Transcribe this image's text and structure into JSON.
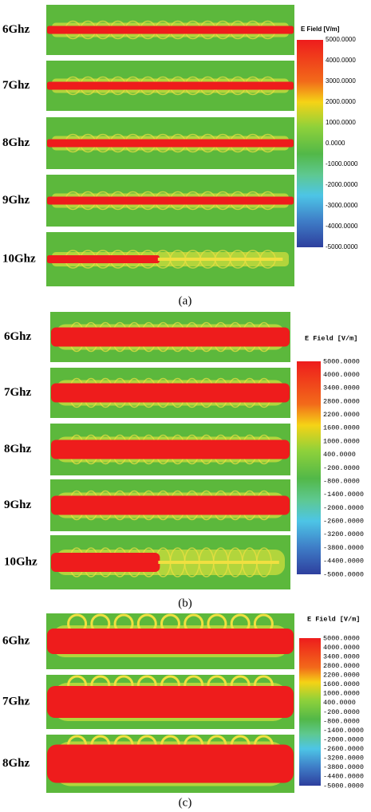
{
  "panels": [
    {
      "label": "(a)",
      "colorbar_title": "E Field [V/m]",
      "colorbar_ticks": [
        "5000.0000",
        "4000.0000",
        "3000.0000",
        "2000.0000",
        "1000.0000",
        "0.0000",
        "-1000.0000",
        "-2000.0000",
        "-3000.0000",
        "-4000.0000",
        "-5000.0000"
      ],
      "rows": [
        "6Ghz",
        "7Ghz",
        "8Ghz",
        "9Ghz",
        "10Ghz"
      ]
    },
    {
      "label": "(b)",
      "colorbar_title": "E Field [V/m]",
      "colorbar_ticks": [
        "5000.0000",
        "4000.0000",
        "3400.0000",
        "2800.0000",
        "2200.0000",
        "1600.0000",
        "1000.0000",
        "400.0000",
        "-200.0000",
        "-800.0000",
        "-1400.0000",
        "-2000.0000",
        "-2600.0000",
        "-3200.0000",
        "-3800.0000",
        "-4400.0000",
        "-5000.0000"
      ],
      "rows": [
        "6Ghz",
        "7Ghz",
        "8Ghz",
        "9Ghz",
        "10Ghz"
      ]
    },
    {
      "label": "(c)",
      "colorbar_title": "E Field [V/m]",
      "colorbar_ticks": [
        "5000.0000",
        "4000.0000",
        "3400.0000",
        "2800.0000",
        "2200.0000",
        "1600.0000",
        "1000.0000",
        "400.0000",
        "-200.0000",
        "-800.0000",
        "-1400.0000",
        "-2000.0000",
        "-2600.0000",
        "-3200.0000",
        "-3800.0000",
        "-4400.0000",
        "-5000.0000"
      ],
      "rows": [
        "6Ghz",
        "7Ghz",
        "8Ghz"
      ]
    }
  ]
}
